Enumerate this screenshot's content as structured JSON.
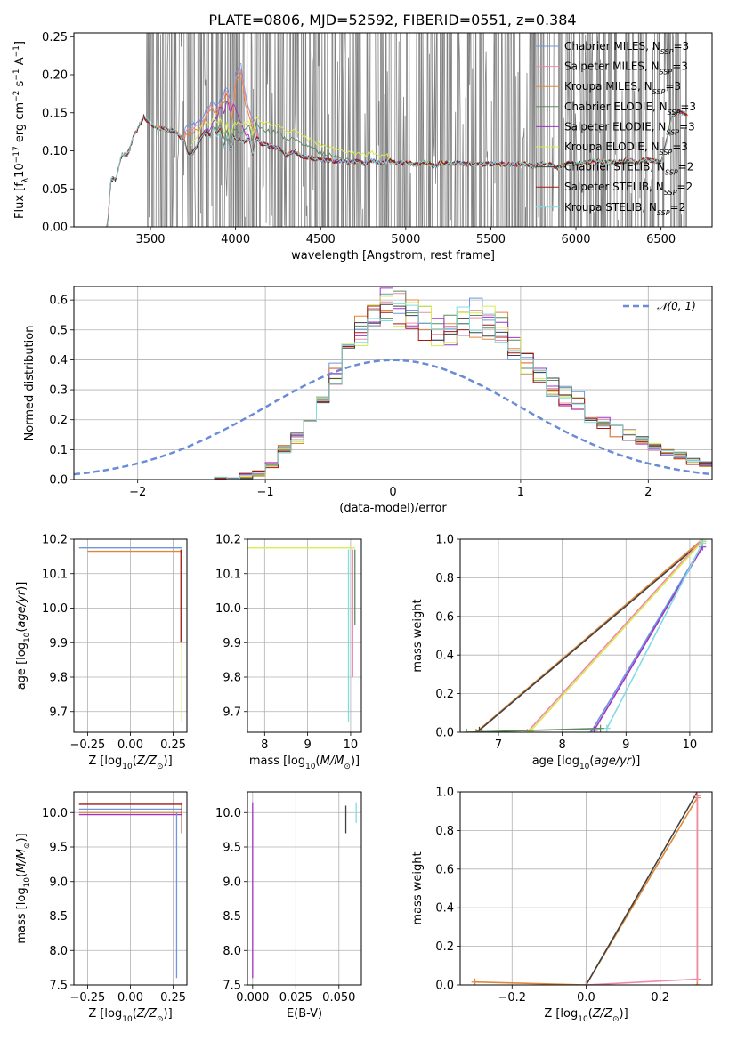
{
  "figure_title": "PLATE=0806, MJD=52592, FIBERID=0551, z=0.384",
  "colors": {
    "chabrier_miles": "#6c96e0",
    "salpeter_miles": "#f08aa8",
    "kroupa_miles": "#e08838",
    "chabrier_elodie": "#5f8a5f",
    "salpeter_elodie": "#a033c8",
    "kroupa_elodie": "#d8ec50",
    "chabrier_stelib": "#404040",
    "salpeter_stelib": "#a01818",
    "kroupa_stelib": "#80dce0",
    "data": "#808080",
    "gauss": "#6a8cd8",
    "grid": "#b0b0b0"
  },
  "chart_data": [
    {
      "id": "spectrum",
      "type": "line",
      "title": "PLATE=0806, MJD=52592, FIBERID=0551, z=0.384",
      "xlabel": "wavelength [Angstrom, rest frame]",
      "ylabel": "Flux [f_λ 10^-17 erg cm^-2 s^-1 A^-1]",
      "xlim": [
        3050,
        6800
      ],
      "ylim": [
        0,
        0.255
      ],
      "xticks": [
        3500,
        4000,
        4500,
        5000,
        5500,
        6000,
        6500
      ],
      "yticks": [
        0.0,
        0.05,
        0.1,
        0.15,
        0.2,
        0.25
      ],
      "grid": false,
      "legend_position": "top-right",
      "legend": [
        "Chabrier MILES, N_SSP=3",
        "Salpeter MILES, N_SSP=3",
        "Kroupa MILES, N_SSP=3",
        "Chabrier ELODIE, N_SSP=3",
        "Salpeter ELODIE, N_SSP=3",
        "Kroupa ELODIE, N_SSP=3",
        "Chabrier STELIB, N_SSP=2",
        "Salpeter STELIB, N_SSP=2",
        "Kroupa STELIB, N_SSP=2"
      ],
      "model_continuum": {
        "x": [
          3050,
          3250,
          3265,
          3300,
          3330,
          3360,
          3380,
          3400,
          3430,
          3460,
          3480,
          3500,
          3520,
          3550,
          3600,
          3650,
          3700,
          3720,
          3750,
          3780,
          3800,
          3830,
          3850,
          3870,
          3890,
          3910,
          3933,
          3950,
          3968,
          3990,
          4020,
          4050,
          4080,
          4102,
          4120,
          4150,
          4200,
          4250,
          4300,
          4340,
          4380,
          4420,
          4460,
          4500,
          4560,
          4620,
          4680,
          4720,
          4761,
          4800,
          4861,
          4900,
          4960,
          5000,
          5060,
          5120,
          5175,
          5200,
          5260,
          5300,
          5400,
          5500,
          5600,
          5700,
          5750,
          5800,
          5850,
          5895,
          5950,
          6000,
          6050,
          6100,
          6200,
          6280,
          6300,
          6360,
          6400,
          6450,
          6500,
          6530,
          6563,
          6590,
          6620,
          6650
        ],
        "y": [
          0.0,
          0.0,
          0.062,
          0.063,
          0.095,
          0.094,
          0.103,
          0.12,
          0.13,
          0.145,
          0.14,
          0.135,
          0.132,
          0.13,
          0.128,
          0.125,
          0.112,
          0.095,
          0.098,
          0.11,
          0.118,
          0.125,
          0.118,
          0.13,
          0.12,
          0.128,
          0.105,
          0.12,
          0.1,
          0.118,
          0.115,
          0.112,
          0.116,
          0.095,
          0.118,
          0.11,
          0.106,
          0.104,
          0.094,
          0.1,
          0.094,
          0.091,
          0.09,
          0.088,
          0.087,
          0.086,
          0.085,
          0.086,
          0.083,
          0.087,
          0.083,
          0.087,
          0.083,
          0.085,
          0.082,
          0.085,
          0.079,
          0.084,
          0.083,
          0.084,
          0.082,
          0.083,
          0.082,
          0.083,
          0.079,
          0.083,
          0.082,
          0.077,
          0.083,
          0.083,
          0.084,
          0.087,
          0.085,
          0.085,
          0.09,
          0.083,
          0.088,
          0.087,
          0.085,
          0.11,
          0.145,
          0.15,
          0.15,
          0.148
        ]
      },
      "miles_blue_bump": {
        "x": [
          3700,
          3750,
          3800,
          3830,
          3860,
          3890,
          3920,
          3950,
          3980,
          4000,
          4030,
          4060,
          4102,
          4130
        ],
        "y": [
          0.13,
          0.135,
          0.14,
          0.155,
          0.165,
          0.16,
          0.17,
          0.185,
          0.15,
          0.2,
          0.215,
          0.17,
          0.14,
          0.13
        ]
      }
    },
    {
      "id": "residual_histogram",
      "type": "histogram",
      "xlabel": "(data-model)/error",
      "ylabel": "Normed distribution",
      "xlim": [
        -2.5,
        2.5
      ],
      "ylim": [
        0,
        0.645
      ],
      "xticks": [
        -2,
        -1,
        0,
        1,
        2
      ],
      "yticks": [
        0.0,
        0.1,
        0.2,
        0.3,
        0.4,
        0.5,
        0.6
      ],
      "grid": true,
      "legend_position": "top-right",
      "legend": [
        "𝒩(0, 1)"
      ],
      "bin_width": 0.1,
      "bin_start": -1.4,
      "reference_values": [
        0.0,
        0.0,
        0.01,
        0.02,
        0.05,
        0.1,
        0.14,
        0.2,
        0.26,
        0.35,
        0.42,
        0.5,
        0.54,
        0.58,
        0.57,
        0.55,
        0.52,
        0.5,
        0.49,
        0.52,
        0.54,
        0.53,
        0.5,
        0.44,
        0.39,
        0.34,
        0.3,
        0.28,
        0.26,
        0.2,
        0.19,
        0.17,
        0.15,
        0.13,
        0.11,
        0.09,
        0.08,
        0.06,
        0.05,
        0.04
      ],
      "gaussian": {
        "mean": 0,
        "sigma": 1
      }
    },
    {
      "id": "age_vs_Z",
      "type": "line",
      "xlabel": "Z [log10(Z/Z⊙)]",
      "ylabel": "age [log10(age/yr)]",
      "xlim": [
        -0.33,
        0.33
      ],
      "ylim": [
        9.64,
        10.2
      ],
      "xticks": [
        -0.25,
        0.0,
        0.25
      ],
      "yticks": [
        9.7,
        9.8,
        9.9,
        10.0,
        10.1,
        10.2
      ],
      "grid": true,
      "horizontal_lines": [
        {
          "x0": -0.3,
          "x1": 0.3,
          "y": 10.175
        },
        {
          "x0": -0.25,
          "x1": 0.3,
          "y": 10.165
        }
      ],
      "vertical_lines": [
        {
          "x": 0.3,
          "y0": 9.67,
          "y1": 10.17
        },
        {
          "x": 0.295,
          "y0": 9.9,
          "y1": 10.17
        }
      ]
    },
    {
      "id": "age_vs_mass",
      "type": "line",
      "xlabel": "mass [log10(M/M⊙)]",
      "ylabel": "",
      "xlim": [
        7.6,
        10.25
      ],
      "ylim": [
        9.64,
        10.2
      ],
      "xticks": [
        8,
        9,
        10
      ],
      "yticks": [
        9.7,
        9.8,
        9.9,
        10.0,
        10.1,
        10.2
      ],
      "grid": true,
      "horizontal_lines": [
        {
          "x0": 7.6,
          "x1": 10.1,
          "y": 10.175
        }
      ],
      "vertical_lines": [
        {
          "x": 9.95,
          "y0": 9.67,
          "y1": 10.17
        },
        {
          "x": 10.05,
          "y0": 9.8,
          "y1": 10.17
        },
        {
          "x": 10.1,
          "y0": 9.95,
          "y1": 10.17
        }
      ]
    },
    {
      "id": "massweight_vs_age",
      "type": "line",
      "xlabel": "age [log10(age/yr)]",
      "ylabel": "mass weight",
      "xlim": [
        6.4,
        10.35
      ],
      "ylim": [
        0,
        1.0
      ],
      "xticks": [
        7,
        8,
        9,
        10
      ],
      "yticks": [
        0.0,
        0.2,
        0.4,
        0.6,
        0.8,
        1.0
      ],
      "grid": true,
      "series": [
        {
          "x": [
            6.65,
            10.2
          ],
          "y": [
            0.0,
            1.0
          ]
        },
        {
          "x": [
            6.7,
            10.2
          ],
          "y": [
            0.01,
            0.99
          ]
        },
        {
          "x": [
            7.45,
            10.2
          ],
          "y": [
            0.0,
            1.0
          ]
        },
        {
          "x": [
            7.5,
            10.2
          ],
          "y": [
            0.005,
            0.99
          ]
        },
        {
          "x": [
            8.45,
            10.2
          ],
          "y": [
            0.0,
            0.97
          ]
        },
        {
          "x": [
            8.5,
            10.2
          ],
          "y": [
            0.01,
            0.96
          ]
        },
        {
          "x": [
            8.7,
            10.2
          ],
          "y": [
            0.02,
            0.98
          ]
        },
        {
          "x": [
            6.5,
            8.6
          ],
          "y": [
            0.0,
            0.02
          ]
        }
      ]
    },
    {
      "id": "mass_vs_Z",
      "type": "line",
      "xlabel": "Z [log10(Z/Z⊙)]",
      "ylabel": "mass [log10(M/M⊙)]",
      "xlim": [
        -0.33,
        0.33
      ],
      "ylim": [
        7.5,
        10.3
      ],
      "xticks": [
        -0.25,
        0.0,
        0.25
      ],
      "yticks": [
        7.5,
        8.0,
        8.5,
        9.0,
        9.5,
        10.0
      ],
      "grid": true,
      "horizontal_lines": [
        {
          "x0": -0.3,
          "x1": 0.3,
          "y": 10.12
        },
        {
          "x0": -0.3,
          "x1": 0.3,
          "y": 10.05
        },
        {
          "x0": -0.3,
          "x1": 0.3,
          "y": 10.0
        },
        {
          "x0": -0.3,
          "x1": 0.3,
          "y": 9.97
        }
      ],
      "vertical_lines": [
        {
          "x": 0.3,
          "y0": 9.7,
          "y1": 10.15
        },
        {
          "x": 0.27,
          "y0": 7.6,
          "y1": 10.0
        }
      ]
    },
    {
      "id": "mass_vs_EBV",
      "type": "line",
      "xlabel": "E(B-V)",
      "ylabel": "",
      "xlim": [
        -0.003,
        0.063
      ],
      "ylim": [
        7.5,
        10.3
      ],
      "xticks": [
        0.0,
        0.025,
        0.05
      ],
      "yticks": [
        7.5,
        8.0,
        8.5,
        9.0,
        9.5,
        10.0
      ],
      "grid": true,
      "vertical_lines": [
        {
          "x": 0.0,
          "y0": 7.6,
          "y1": 10.15
        },
        {
          "x": 0.054,
          "y0": 9.7,
          "y1": 10.1
        },
        {
          "x": 0.06,
          "y0": 9.85,
          "y1": 10.15
        }
      ]
    },
    {
      "id": "massweight_vs_Z",
      "type": "line",
      "xlabel": "Z [log10(Z/Z⊙)]",
      "ylabel": "mass weight",
      "xlim": [
        -0.34,
        0.34
      ],
      "ylim": [
        0,
        1.0
      ],
      "xticks": [
        -0.2,
        0.0,
        0.2
      ],
      "yticks": [
        0.0,
        0.2,
        0.4,
        0.6,
        0.8,
        1.0
      ],
      "grid": true,
      "series": [
        {
          "x": [
            -0.3,
            0.0,
            0.3,
            0.3
          ],
          "y": [
            0.015,
            0.0,
            0.97,
            0.0
          ]
        },
        {
          "x": [
            0.0,
            0.3
          ],
          "y": [
            0.0,
            1.0
          ]
        },
        {
          "x": [
            0.0,
            0.3,
            0.3
          ],
          "y": [
            0.0,
            0.03,
            0.98
          ]
        }
      ]
    }
  ]
}
